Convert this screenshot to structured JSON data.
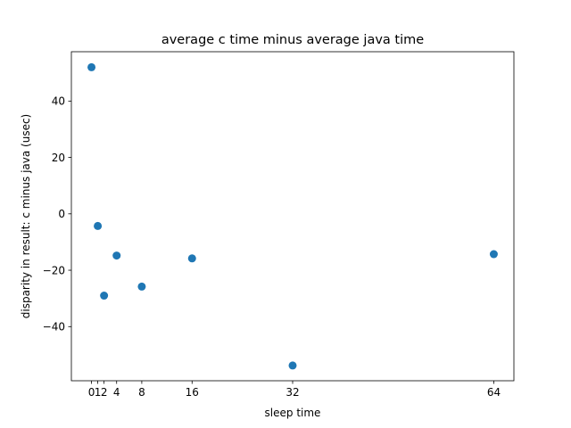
{
  "chart_data": {
    "type": "scatter",
    "title": "average c time minus average java time",
    "xlabel": "sleep time",
    "ylabel": "disparity in result: c minus java (usec)",
    "x_ticks": [
      0,
      1,
      2,
      4,
      8,
      16,
      32,
      64
    ],
    "x_tick_labels": [
      "0",
      "1",
      "2",
      "4",
      "8",
      "16",
      "32",
      "64"
    ],
    "y_ticks": [
      -40,
      -20,
      0,
      20,
      40
    ],
    "y_tick_labels": [
      "−40",
      "−20",
      "0",
      "20",
      "40"
    ],
    "xlim": [
      -3.2,
      67.2
    ],
    "ylim": [
      -59.2,
      57.5
    ],
    "grid": false,
    "marker_color": "#1f77b4",
    "series": [
      {
        "x": [
          0,
          1,
          2,
          4,
          8,
          16,
          32,
          64
        ],
        "y": [
          52,
          -4.3,
          -29,
          -14.8,
          -25.8,
          -15.8,
          -53.8,
          -14.3
        ]
      }
    ]
  }
}
